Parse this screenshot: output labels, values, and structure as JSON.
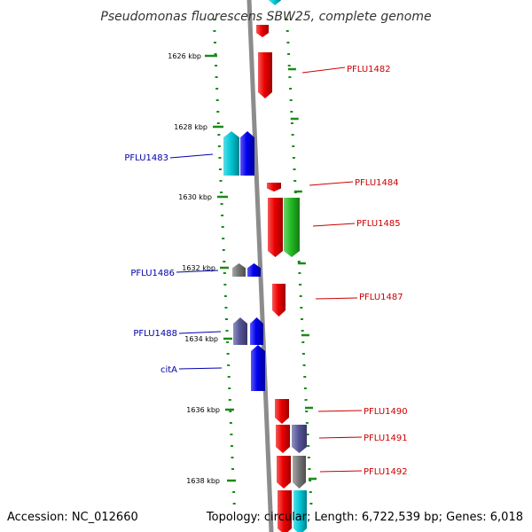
{
  "title": "Pseudomonas fluorescens SBW25, complete genome",
  "accession": "Accession: NC_012660",
  "summary": "Topology: circular; Length: 6,722,539 bp; Genes: 6,018",
  "colors": {
    "backbone": "#8c8c8c",
    "tick": "#1a8a1a",
    "plus_strand_label": "#cc0000",
    "minus_strand_label": "#0000aa"
  },
  "kbp_markers": [
    "1626 kbp",
    "1628 kbp",
    "1630 kbp",
    "1632 kbp",
    "1634 kbp",
    "1636 kbp",
    "1638 kbp"
  ],
  "gene_labels": [
    {
      "text": "PFLU1482",
      "strand": "plus"
    },
    {
      "text": "PFLU1483",
      "strand": "minus"
    },
    {
      "text": "PFLU1484",
      "strand": "plus"
    },
    {
      "text": "PFLU1485",
      "strand": "plus"
    },
    {
      "text": "PFLU1486",
      "strand": "minus"
    },
    {
      "text": "PFLU1487",
      "strand": "plus"
    },
    {
      "text": "PFLU1488",
      "strand": "minus"
    },
    {
      "text": "citA",
      "strand": "minus"
    },
    {
      "text": "PFLU1490",
      "strand": "plus"
    },
    {
      "text": "PFLU1491",
      "strand": "plus"
    },
    {
      "text": "PFLU1492",
      "strand": "plus"
    }
  ],
  "features": [
    {
      "color": "#00c8d8",
      "strand": "plus"
    },
    {
      "color": "#ee0000",
      "strand": "plus"
    },
    {
      "color": "#ee0000",
      "strand": "plus"
    },
    {
      "color": "#00c8d8",
      "strand": "minus"
    },
    {
      "color": "#0000ee",
      "strand": "minus"
    },
    {
      "color": "#ee0000",
      "strand": "plus"
    },
    {
      "color": "#ee0000",
      "strand": "plus"
    },
    {
      "color": "#22bb22",
      "strand": "plus"
    },
    {
      "color": "#777777",
      "strand": "minus"
    },
    {
      "color": "#0000ee",
      "strand": "minus"
    },
    {
      "color": "#ee0000",
      "strand": "plus"
    },
    {
      "color": "#555599",
      "strand": "minus"
    },
    {
      "color": "#0000ee",
      "strand": "minus"
    },
    {
      "color": "#0000ee",
      "strand": "minus"
    },
    {
      "color": "#ee0000",
      "strand": "plus"
    },
    {
      "color": "#ee0000",
      "strand": "plus"
    },
    {
      "color": "#555599",
      "strand": "plus"
    },
    {
      "color": "#ee0000",
      "strand": "plus"
    },
    {
      "color": "#777777",
      "strand": "plus"
    },
    {
      "color": "#ee0000",
      "strand": "plus"
    },
    {
      "color": "#00c8d8",
      "strand": "plus"
    }
  ]
}
